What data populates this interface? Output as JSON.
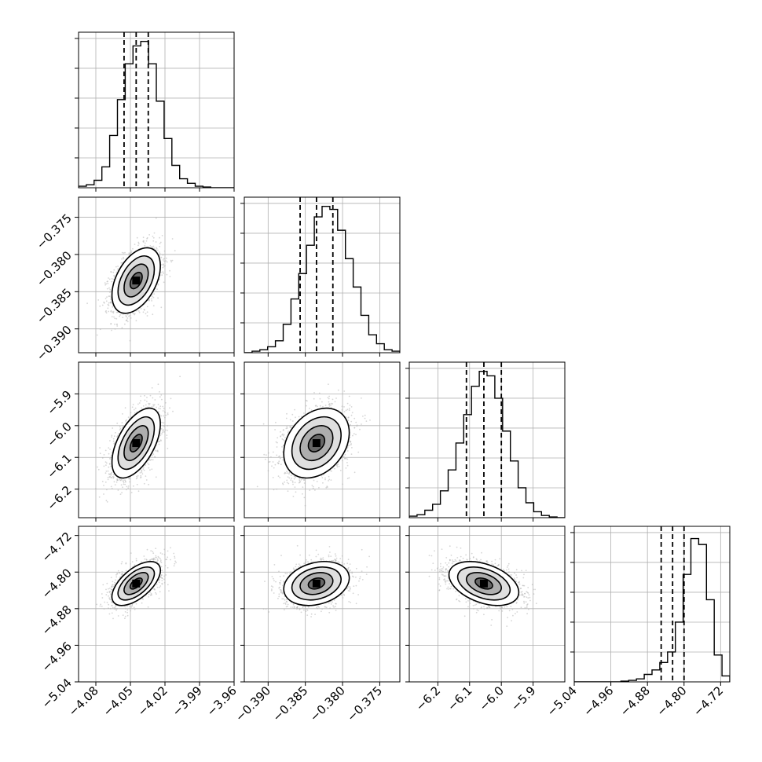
{
  "chart_data": {
    "type": "corner",
    "xlabel": "",
    "ylabel": "",
    "parameters": [
      {
        "mean": -4.045,
        "sd": 0.0105,
        "range": [
          -4.095,
          -3.96
        ],
        "ticks": [
          -4.08,
          -4.05,
          -4.02,
          -3.99,
          -3.96
        ],
        "tick_labels": [
          "−4.08",
          "−4.05",
          "−4.02",
          "−3.99",
          "−3.96"
        ],
        "quantiles": [
          -4.0555,
          -4.045,
          -4.0345
        ],
        "hist": [
          0.01,
          0.02,
          0.05,
          0.14,
          0.35,
          0.59,
          0.83,
          0.95,
          0.98,
          0.83,
          0.58,
          0.33,
          0.15,
          0.06,
          0.03,
          0.01,
          0.005,
          0,
          0,
          0
        ]
      },
      {
        "mean": -0.3835,
        "sd": 0.0022,
        "range": [
          -0.3932,
          -0.3723
        ],
        "ticks": [
          -0.39,
          -0.385,
          -0.38,
          -0.375
        ],
        "tick_labels": [
          "−0.390",
          "−0.385",
          "−0.380",
          "−0.375"
        ],
        "quantiles": [
          -0.3857,
          -0.3835,
          -0.3813
        ],
        "hist": [
          0,
          0.01,
          0.02,
          0.04,
          0.08,
          0.19,
          0.36,
          0.53,
          0.72,
          0.91,
          0.98,
          0.96,
          0.82,
          0.63,
          0.44,
          0.25,
          0.12,
          0.06,
          0.02,
          0.01
        ]
      },
      {
        "mean": -6.055,
        "sd": 0.055,
        "range": [
          -6.29,
          -5.8
        ],
        "ticks": [
          -6.2,
          -6.1,
          -6.0,
          -5.9
        ],
        "tick_labels": [
          "−6.2",
          "−6.1",
          "−6.0",
          "−5.9"
        ],
        "quantiles": [
          -6.11,
          -6.055,
          -6.0
        ],
        "hist": [
          0.01,
          0.02,
          0.05,
          0.09,
          0.18,
          0.32,
          0.5,
          0.69,
          0.88,
          0.98,
          0.95,
          0.8,
          0.58,
          0.38,
          0.2,
          0.1,
          0.04,
          0.015,
          0.005,
          0
        ]
      },
      {
        "mean": -4.825,
        "sd": 0.024,
        "range": [
          -5.04,
          -4.7
        ],
        "ticks": [
          -5.04,
          -4.96,
          -4.88,
          -4.8,
          -4.72
        ],
        "tick_labels": [
          "−5.04",
          "−4.96",
          "−4.88",
          "−4.80",
          "−4.72"
        ],
        "quantiles": [
          -4.85,
          -4.825,
          -4.8
        ],
        "hist": [
          0,
          0,
          0,
          0,
          0,
          0,
          0.005,
          0.01,
          0.02,
          0.05,
          0.08,
          0.13,
          0.2,
          0.4,
          0.72,
          0.96,
          0.92,
          0.55,
          0.18,
          0.04
        ]
      }
    ],
    "correlations": [
      {
        "x": 0,
        "y": 1,
        "rho": 0.45
      },
      {
        "x": 0,
        "y": 2,
        "rho": 0.55
      },
      {
        "x": 1,
        "y": 2,
        "rho": 0.3
      },
      {
        "x": 0,
        "y": 3,
        "rho": 0.6
      },
      {
        "x": 1,
        "y": 3,
        "rho": 0.25
      },
      {
        "x": 2,
        "y": 3,
        "rho": -0.4
      }
    ],
    "contour_levels_sigma": [
      0.5,
      1.0,
      1.5,
      2.0
    ],
    "grid": true,
    "colors": {
      "line": "#000000",
      "grid": "#b0b0b0",
      "points": "#b4b4b4"
    }
  }
}
